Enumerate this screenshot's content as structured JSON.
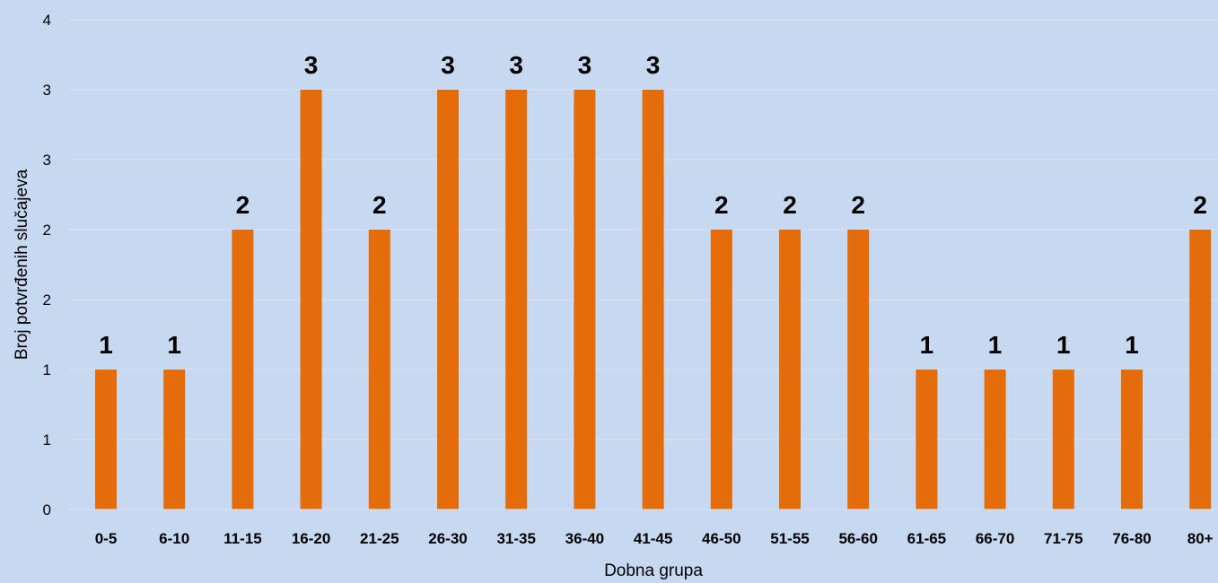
{
  "chart_data": {
    "type": "bar",
    "title": "",
    "xlabel": "Dobna grupa",
    "ylabel": "Broj potvrđenih slučajeva",
    "categories": [
      "0-5",
      "6-10",
      "11-15",
      "16-20",
      "21-25",
      "26-30",
      "31-35",
      "36-40",
      "41-45",
      "46-50",
      "51-55",
      "56-60",
      "61-65",
      "66-70",
      "71-75",
      "76-80",
      "80+"
    ],
    "values": [
      1,
      1,
      2,
      3,
      2,
      3,
      3,
      3,
      3,
      2,
      2,
      2,
      1,
      1,
      1,
      1,
      2
    ],
    "y_tick_labels": [
      "0",
      "1",
      "1",
      "2",
      "2",
      "3",
      "3",
      "4"
    ],
    "grid": true,
    "legend": "none",
    "colors": {
      "background": "#c6d9f0",
      "bar": "#e46c0a",
      "grid": "#d9e4f2"
    }
  }
}
